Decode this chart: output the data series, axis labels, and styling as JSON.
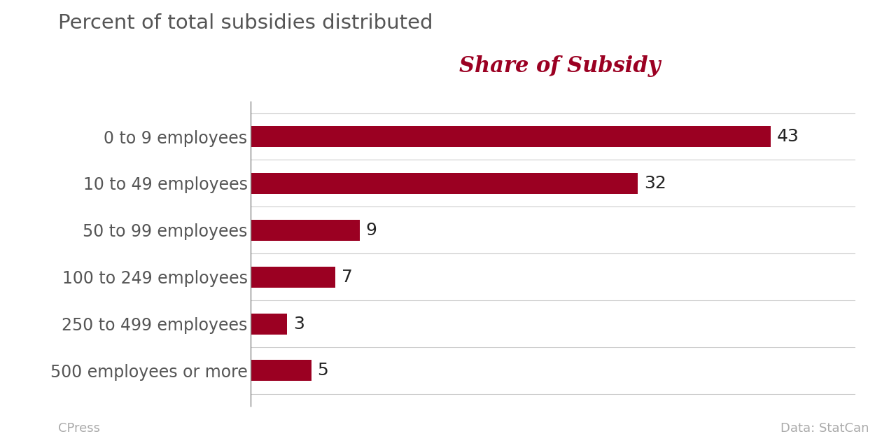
{
  "title": "Percent of total subsidies distributed",
  "subtitle": "Share of Subsidy",
  "categories": [
    "0 to 9 employees",
    "10 to 49 employees",
    "50 to 99 employees",
    "100 to 249 employees",
    "250 to 499 employees",
    "500 employees or more"
  ],
  "values": [
    43,
    32,
    9,
    7,
    3,
    5
  ],
  "bar_color": "#9b0022",
  "background_color": "#ffffff",
  "title_color": "#555555",
  "subtitle_color": "#9b0022",
  "label_color": "#555555",
  "value_label_color": "#222222",
  "grid_color": "#cccccc",
  "footer_left": "CPress",
  "footer_right": "Data: StatCan",
  "footer_color": "#aaaaaa",
  "xlim": [
    0,
    50
  ],
  "title_fontsize": 21,
  "subtitle_fontsize": 22,
  "category_fontsize": 17,
  "value_fontsize": 18,
  "footer_fontsize": 13,
  "bar_height": 0.45
}
